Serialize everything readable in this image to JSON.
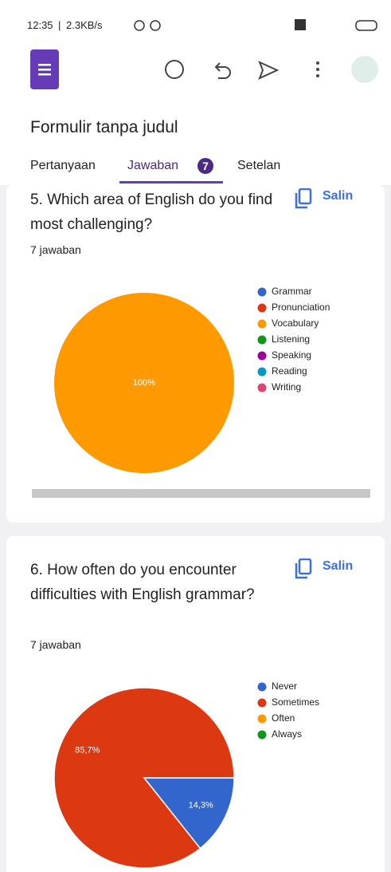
{
  "status_bar": {
    "time": "12:35",
    "speed": "2.3KB/s"
  },
  "header": {
    "title": "Formulir tanpa judul"
  },
  "tabs": [
    {
      "label": "Pertanyaan"
    },
    {
      "label": "Jawaban",
      "badge": "7"
    },
    {
      "label": "Setelan"
    }
  ],
  "questions": [
    {
      "title": "5. Which area of English do you find most challenging?",
      "copy": "Salin",
      "count": "7 jawaban",
      "chart": {
        "type": "pie",
        "categories": [
          "Grammar",
          "Pronunciation",
          "Vocabulary",
          "Listening",
          "Speaking",
          "Reading",
          "Writing"
        ],
        "colors": [
          "#3366cc",
          "#dc3912",
          "#ff9900",
          "#109618",
          "#990099",
          "#0099c6",
          "#dd4477"
        ],
        "values": [
          0,
          0,
          100,
          0,
          0,
          0,
          0
        ],
        "value_labels": [
          null,
          null,
          "100%",
          null,
          null,
          null,
          null
        ]
      }
    },
    {
      "title": "6. How often do you encounter difficulties with English grammar?",
      "copy": "Salin",
      "count": "7 jawaban",
      "chart": {
        "type": "pie",
        "categories": [
          "Never",
          "Sometimes",
          "Often",
          "Always"
        ],
        "colors": [
          "#3366cc",
          "#dc3912",
          "#ff9900",
          "#109618"
        ],
        "values": [
          14.3,
          85.7,
          0,
          0
        ],
        "value_labels": [
          "14,3%",
          "85,7%",
          null,
          null
        ]
      }
    }
  ]
}
